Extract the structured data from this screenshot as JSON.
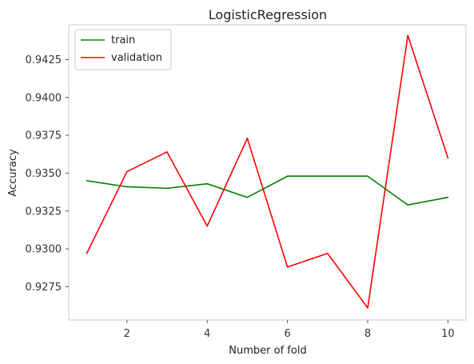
{
  "chart_data": {
    "type": "line",
    "title": "LogisticRegression",
    "xlabel": "Number of fold",
    "ylabel": "Accuracy",
    "x": [
      1,
      2,
      3,
      4,
      5,
      6,
      7,
      8,
      9,
      10
    ],
    "xlim": [
      0.55,
      10.45
    ],
    "ylim": [
      0.9253,
      0.9448
    ],
    "xticks": [
      2,
      4,
      6,
      8,
      10
    ],
    "yticks": [
      0.9275,
      0.93,
      0.9325,
      0.935,
      0.9375,
      0.94,
      0.9425
    ],
    "ytick_labels": [
      "0.9275",
      "0.9300",
      "0.9325",
      "0.9350",
      "0.9375",
      "0.9400",
      "0.9425"
    ],
    "grid": false,
    "legend": "top-left",
    "series": [
      {
        "name": "train",
        "color": "#008000",
        "values": [
          0.9345,
          0.9341,
          0.934,
          0.9343,
          0.9334,
          0.9348,
          0.9348,
          0.9348,
          0.9329,
          0.9334
        ]
      },
      {
        "name": "validation",
        "color": "#ff0000",
        "values": [
          0.9297,
          0.9351,
          0.9364,
          0.9315,
          0.9373,
          0.9288,
          0.9297,
          0.9261,
          0.9441,
          0.936
        ]
      }
    ]
  }
}
